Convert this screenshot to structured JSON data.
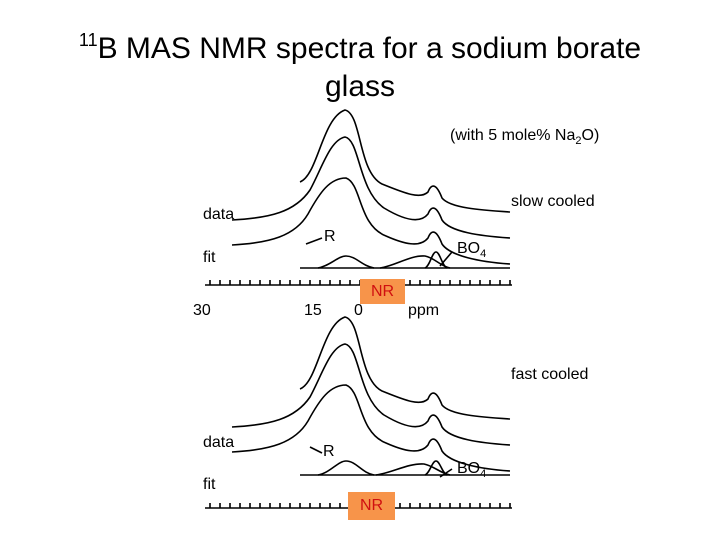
{
  "header": {
    "title": {
      "superscript": "11",
      "text": "B MAS NMR spectra for a sodium borate glass"
    },
    "note": {
      "prefix": "(with 5 mole% Na",
      "subscript": "2",
      "suffix": "O)"
    }
  },
  "panels": [
    {
      "title": "slow cooled",
      "data_label": "data",
      "fit_label": "fit",
      "r_label": "R",
      "bo4_label": {
        "text": "BO",
        "subscript": "4"
      },
      "nr_label": "NR",
      "axis_labels": [
        "30",
        "15",
        "0"
      ],
      "axis_unit": "ppm"
    },
    {
      "title": "fast cooled",
      "data_label": "data",
      "fit_label": "fit",
      "r_label": "R",
      "bo4_label": {
        "text": "BO",
        "subscript": "4"
      },
      "nr_label": "NR"
    }
  ]
}
